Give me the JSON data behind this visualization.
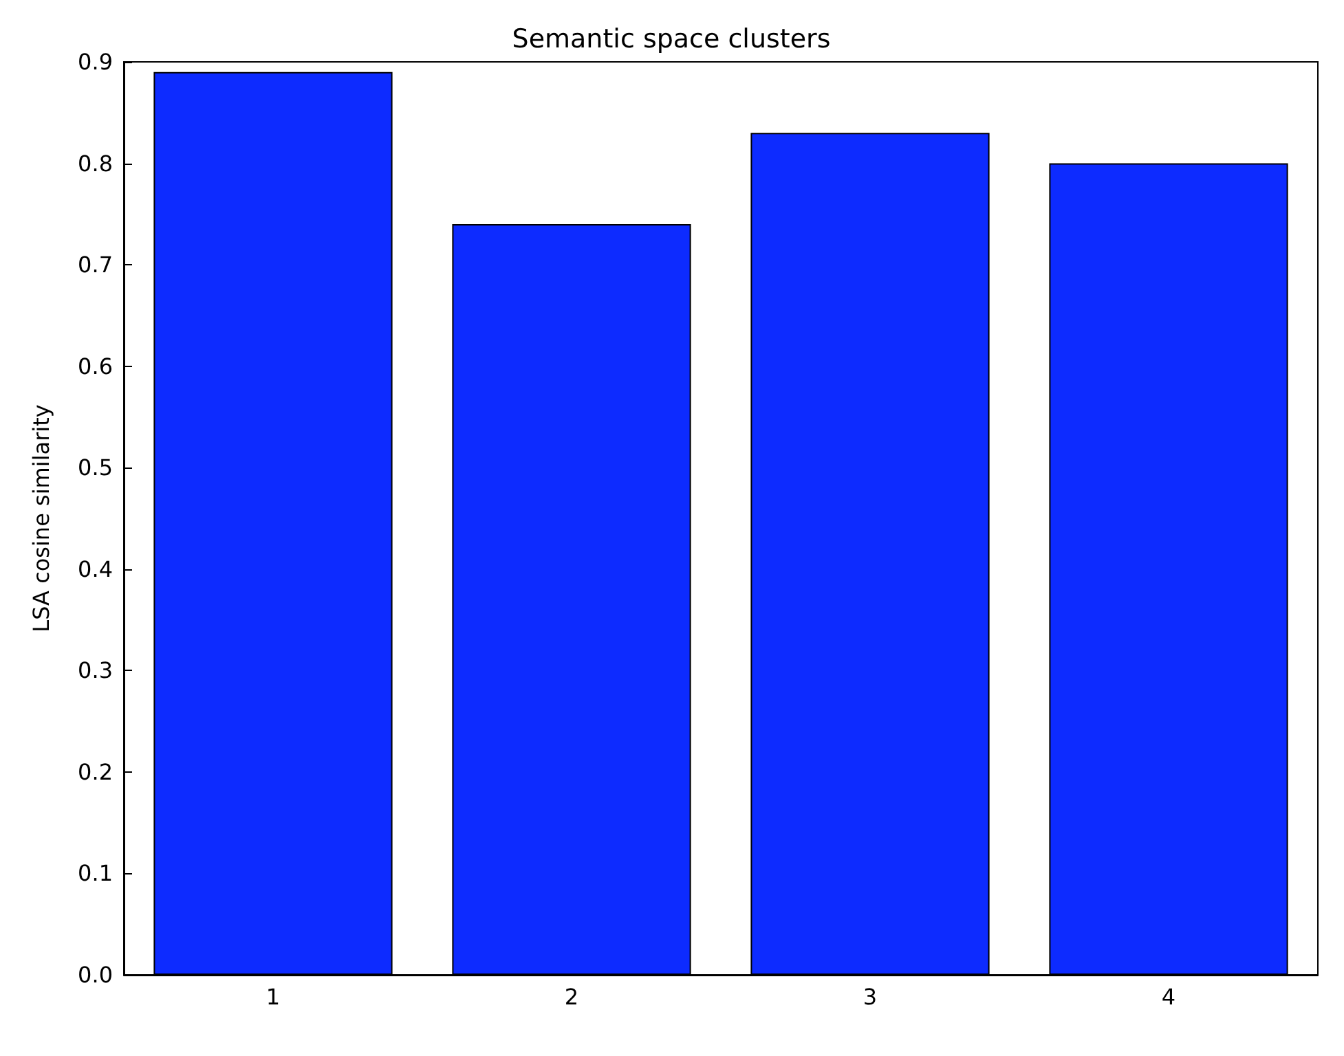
{
  "chart_data": {
    "type": "bar",
    "title": "Semantic space clusters",
    "ylabel": "LSA cosine similarity",
    "categories": [
      "1",
      "2",
      "3",
      "4"
    ],
    "values": [
      0.89,
      0.74,
      0.83,
      0.8
    ],
    "color": "#0d2bff",
    "ylim": [
      0,
      0.9
    ],
    "yticks": [
      {
        "value": 0,
        "label": "0.0"
      },
      {
        "value": 0.1,
        "label": "0.1"
      },
      {
        "value": 0.2,
        "label": "0.2"
      },
      {
        "value": 0.3,
        "label": "0.3"
      },
      {
        "value": 0.4,
        "label": "0.4"
      },
      {
        "value": 0.5,
        "label": "0.5"
      },
      {
        "value": 0.6,
        "label": "0.6"
      },
      {
        "value": 0.7,
        "label": "0.7"
      },
      {
        "value": 0.8,
        "label": "0.8"
      },
      {
        "value": 0.9,
        "label": "0.9"
      }
    ],
    "grid": false
  }
}
